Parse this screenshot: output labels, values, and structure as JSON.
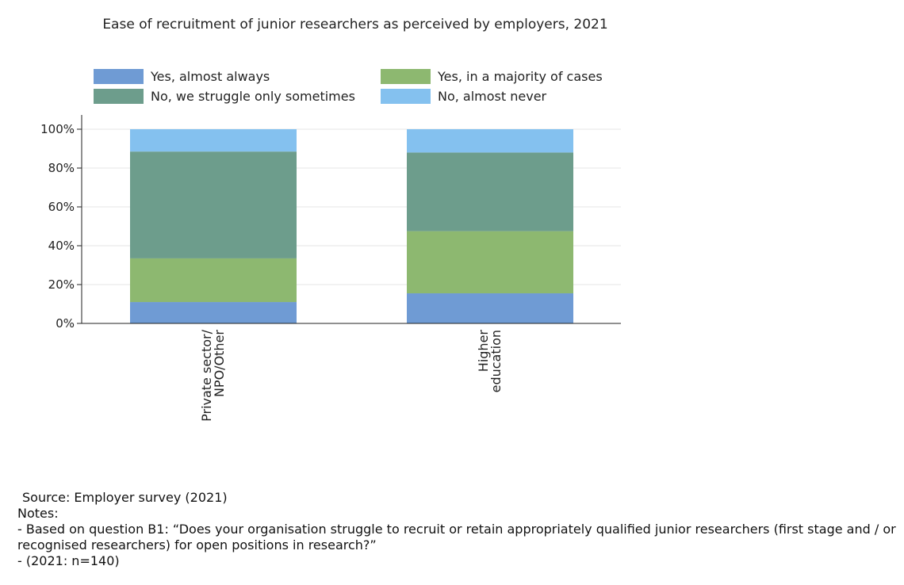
{
  "chart_data": {
    "type": "bar",
    "stacked": true,
    "title": "Ease of recruitment of junior researchers as perceived by employers, 2021",
    "categories": [
      [
        "Private sector/",
        "NPO/Other"
      ],
      [
        "Higher",
        "education"
      ]
    ],
    "series": [
      {
        "name": "Yes, almost always",
        "color": "#6f9bd4",
        "values": [
          11,
          15.5
        ]
      },
      {
        "name": "Yes, in a majority of cases",
        "color": "#8db870",
        "values": [
          22.5,
          32
        ]
      },
      {
        "name": "No, we struggle only sometimes",
        "color": "#6d9d8c",
        "values": [
          55,
          40.5
        ]
      },
      {
        "name": "No, almost never",
        "color": "#84c1ef",
        "values": [
          11.5,
          12
        ]
      }
    ],
    "y_ticks": [
      "0%",
      "20%",
      "40%",
      "60%",
      "80%",
      "100%"
    ],
    "ylim": [
      0,
      100
    ],
    "grid": true,
    "legend_position": "top"
  },
  "notes": {
    "source": "Source: Employer survey (2021)",
    "heading": "Notes:",
    "lines": [
      "- Based on question B1: “Does your organisation struggle to recruit or retain appropriately qualified junior researchers (first stage and / or recognised researchers) for open positions in research?”",
      "- (2021: n=140)"
    ]
  }
}
